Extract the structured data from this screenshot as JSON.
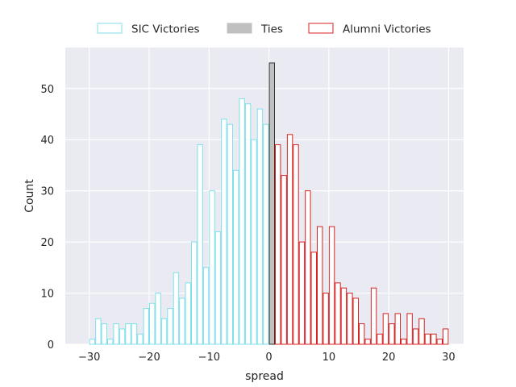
{
  "chart_data": {
    "type": "bar",
    "title": "",
    "xlabel": "spread",
    "ylabel": "Count",
    "xlim": [
      -34,
      32.5
    ],
    "ylim": [
      0,
      58
    ],
    "xticks": [
      -30,
      -20,
      -10,
      0,
      10,
      20,
      30
    ],
    "yticks": [
      0,
      10,
      20,
      30,
      40,
      50
    ],
    "grid": true,
    "legend_position": "top-center",
    "bin_width": 1,
    "series": [
      {
        "name": "SIC Victories",
        "color": "#7fdfea",
        "fill": "#ffffff",
        "bins": [
          {
            "x": -30,
            "count": 1
          },
          {
            "x": -29,
            "count": 5
          },
          {
            "x": -28,
            "count": 4
          },
          {
            "x": -27,
            "count": 1
          },
          {
            "x": -26,
            "count": 4
          },
          {
            "x": -25,
            "count": 3
          },
          {
            "x": -24,
            "count": 4
          },
          {
            "x": -23,
            "count": 4
          },
          {
            "x": -22,
            "count": 2
          },
          {
            "x": -21,
            "count": 7
          },
          {
            "x": -20,
            "count": 8
          },
          {
            "x": -19,
            "count": 10
          },
          {
            "x": -18,
            "count": 5
          },
          {
            "x": -17,
            "count": 7
          },
          {
            "x": -16,
            "count": 14
          },
          {
            "x": -15,
            "count": 9
          },
          {
            "x": -14,
            "count": 12
          },
          {
            "x": -13,
            "count": 20
          },
          {
            "x": -12,
            "count": 39
          },
          {
            "x": -11,
            "count": 15
          },
          {
            "x": -10,
            "count": 30
          },
          {
            "x": -9,
            "count": 22
          },
          {
            "x": -8,
            "count": 44
          },
          {
            "x": -7,
            "count": 43
          },
          {
            "x": -6,
            "count": 34
          },
          {
            "x": -5,
            "count": 48
          },
          {
            "x": -4,
            "count": 47
          },
          {
            "x": -3,
            "count": 40
          },
          {
            "x": -2,
            "count": 46
          },
          {
            "x": -1,
            "count": 43
          }
        ]
      },
      {
        "name": "Ties",
        "color": "#333333",
        "fill": "#c0c0c0",
        "bins": [
          {
            "x": 0,
            "count": 55
          }
        ]
      },
      {
        "name": "Alumni Victories",
        "color": "#d62222",
        "fill": "#ffffff",
        "bins": [
          {
            "x": 1,
            "count": 39
          },
          {
            "x": 2,
            "count": 33
          },
          {
            "x": 3,
            "count": 41
          },
          {
            "x": 4,
            "count": 39
          },
          {
            "x": 5,
            "count": 20
          },
          {
            "x": 6,
            "count": 30
          },
          {
            "x": 7,
            "count": 18
          },
          {
            "x": 8,
            "count": 23
          },
          {
            "x": 9,
            "count": 10
          },
          {
            "x": 10,
            "count": 23
          },
          {
            "x": 11,
            "count": 12
          },
          {
            "x": 12,
            "count": 11
          },
          {
            "x": 13,
            "count": 10
          },
          {
            "x": 14,
            "count": 9
          },
          {
            "x": 15,
            "count": 4
          },
          {
            "x": 16,
            "count": 1
          },
          {
            "x": 17,
            "count": 11
          },
          {
            "x": 18,
            "count": 2
          },
          {
            "x": 19,
            "count": 6
          },
          {
            "x": 20,
            "count": 4
          },
          {
            "x": 21,
            "count": 6
          },
          {
            "x": 22,
            "count": 1
          },
          {
            "x": 23,
            "count": 6
          },
          {
            "x": 24,
            "count": 3
          },
          {
            "x": 25,
            "count": 5
          },
          {
            "x": 26,
            "count": 2
          },
          {
            "x": 27,
            "count": 2
          },
          {
            "x": 28,
            "count": 1
          },
          {
            "x": 29,
            "count": 3
          }
        ]
      }
    ]
  }
}
